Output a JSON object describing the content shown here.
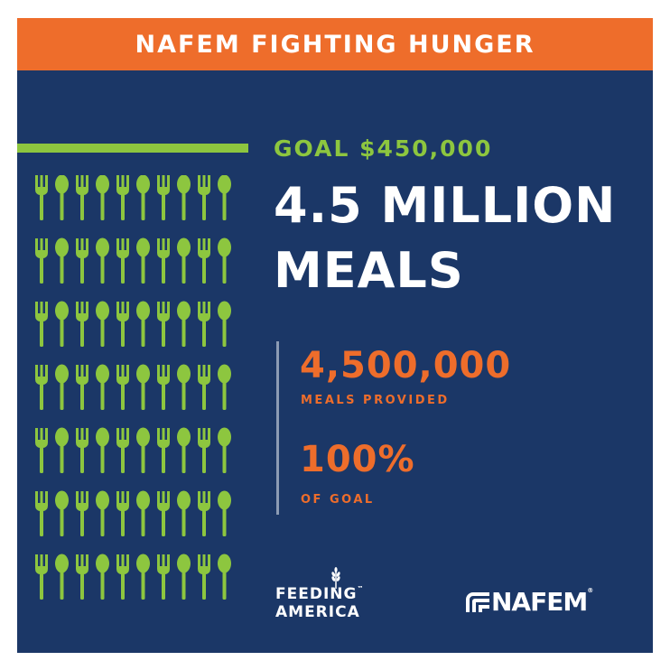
{
  "banner": {
    "title": "NAFEM FIGHTING HUNGER"
  },
  "goal": {
    "label": "GOAL $450,000"
  },
  "headline": {
    "line1": "4.5 MILLION",
    "line2": "MEALS"
  },
  "stats": [
    {
      "value": "4,500,000",
      "label": "MEALS PROVIDED"
    },
    {
      "value": "100%",
      "label": "OF GOAL"
    }
  ],
  "utensil_grid": {
    "rows": 7,
    "pattern": [
      "fork",
      "spoon",
      "fork",
      "spoon",
      "fork",
      "spoon",
      "fork",
      "spoon",
      "fork",
      "spoon"
    ]
  },
  "logos": {
    "feeding_america": {
      "line1": "FEEDING",
      "line2": "AMERICA",
      "tm": "™"
    },
    "nafem": {
      "text": "NAFEM",
      "reg": "®"
    }
  },
  "colors": {
    "navy": "#1b3767",
    "orange": "#ee6d2b",
    "green": "#8dc63f",
    "white": "#ffffff"
  }
}
